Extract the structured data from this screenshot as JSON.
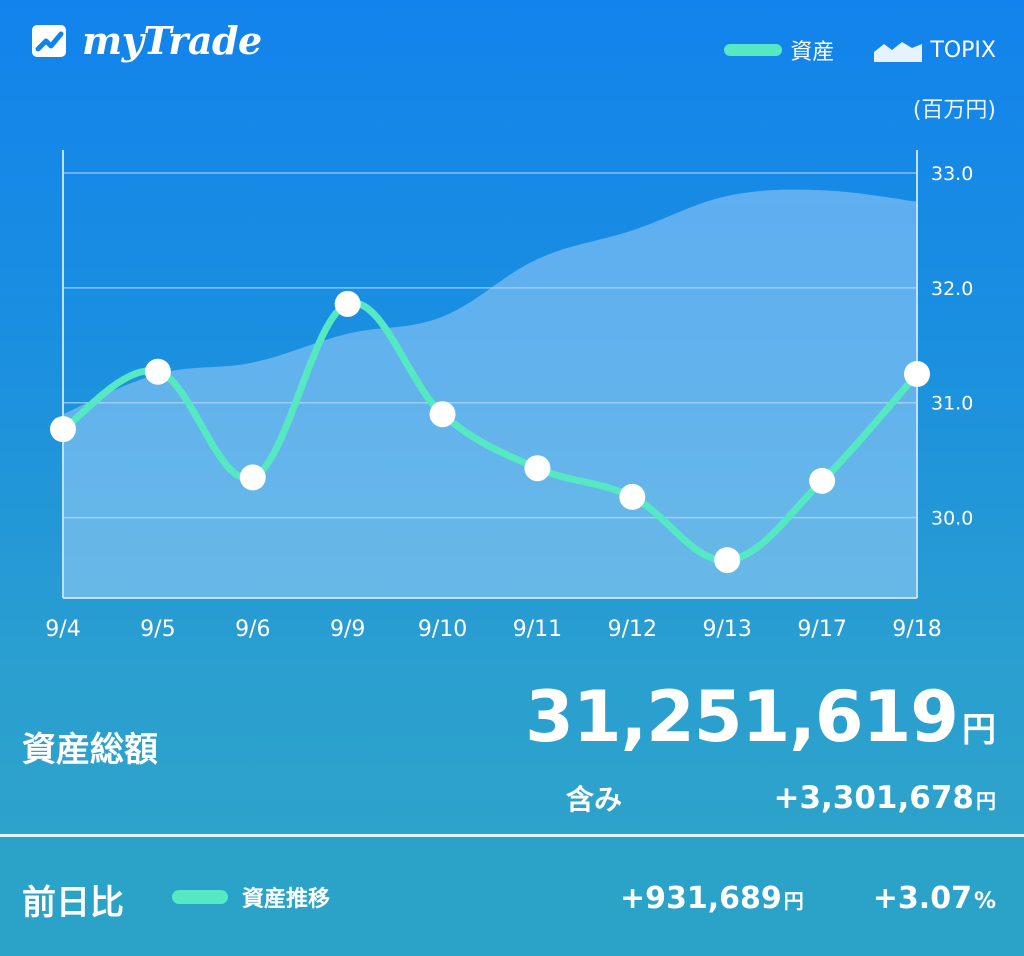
{
  "app": {
    "title": "myTrade"
  },
  "legend": {
    "asset_label": "資産",
    "topix_label": "TOPIX",
    "unit": "(百万円)"
  },
  "colors": {
    "asset_line": "#55e8c3",
    "topix_area": "#b8dcff",
    "grid": "#9fd0ff"
  },
  "chart_data": {
    "type": "line",
    "categories": [
      "9/4",
      "9/5",
      "9/6",
      "9/9",
      "9/10",
      "9/11",
      "9/12",
      "9/13",
      "9/17",
      "9/18"
    ],
    "series": [
      {
        "name": "資産",
        "values": [
          30.77,
          31.27,
          30.35,
          31.86,
          30.9,
          30.43,
          30.18,
          29.63,
          30.32,
          31.25
        ]
      },
      {
        "name": "TOPIX",
        "values": [
          30.9,
          31.25,
          31.35,
          31.6,
          31.75,
          32.25,
          32.5,
          32.8,
          32.85,
          32.75
        ]
      }
    ],
    "xlabel": "",
    "ylabel": "",
    "y_ticks": [
      "30.0",
      "31.0",
      "32.0",
      "33.0"
    ],
    "ylim": [
      29.3,
      33.2
    ],
    "grid": true,
    "legend_position": "top-right"
  },
  "summary": {
    "total_label": "資産総額",
    "total_value": "31,251,619",
    "yen": "円",
    "included_label": "含み",
    "included_value": "+3,301,678"
  },
  "footer": {
    "label": "前日比",
    "legend_label": "資産推移",
    "diff_value": "+931,689",
    "pct_value": "+3.07",
    "pct_sign": "%"
  }
}
